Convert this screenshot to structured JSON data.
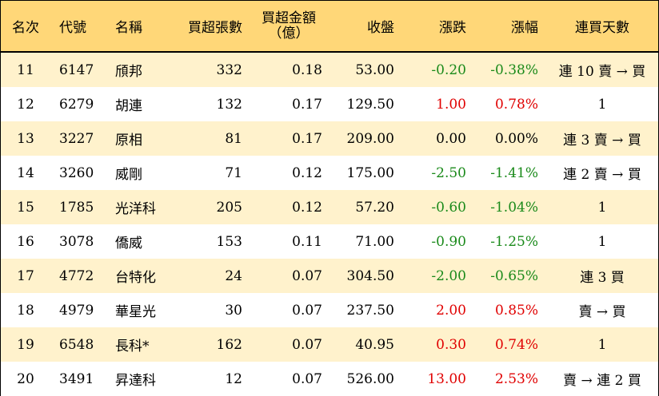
{
  "header": {
    "rank": "名次",
    "code": "代號",
    "name": "名稱",
    "net_buy_lots": "買超張數",
    "net_buy_amount_line1": "買超金額",
    "net_buy_amount_line2": "（億）",
    "close": "收盤",
    "change": "漲跌",
    "change_pct": "漲幅",
    "consecutive_days": "連買天數"
  },
  "rows": [
    {
      "rank": "11",
      "code": "6147",
      "name": "頎邦",
      "lots": "332",
      "amount": "0.18",
      "close": "53.00",
      "change": "-0.20",
      "pct": "-0.38%",
      "days": "連 10 賣 → 買",
      "dir": "neg"
    },
    {
      "rank": "12",
      "code": "6279",
      "name": "胡連",
      "lots": "132",
      "amount": "0.17",
      "close": "129.50",
      "change": "1.00",
      "pct": "0.78%",
      "days": "1",
      "dir": "pos"
    },
    {
      "rank": "13",
      "code": "3227",
      "name": "原相",
      "lots": "81",
      "amount": "0.17",
      "close": "209.00",
      "change": "0.00",
      "pct": "0.00%",
      "days": "連 3 賣 → 買",
      "dir": "zero"
    },
    {
      "rank": "14",
      "code": "3260",
      "name": "威剛",
      "lots": "71",
      "amount": "0.12",
      "close": "175.00",
      "change": "-2.50",
      "pct": "-1.41%",
      "days": "連 2 賣 → 買",
      "dir": "neg"
    },
    {
      "rank": "15",
      "code": "1785",
      "name": "光洋科",
      "lots": "205",
      "amount": "0.12",
      "close": "57.20",
      "change": "-0.60",
      "pct": "-1.04%",
      "days": "1",
      "dir": "neg"
    },
    {
      "rank": "16",
      "code": "3078",
      "name": "僑威",
      "lots": "153",
      "amount": "0.11",
      "close": "71.00",
      "change": "-0.90",
      "pct": "-1.25%",
      "days": "1",
      "dir": "neg"
    },
    {
      "rank": "17",
      "code": "4772",
      "name": "台特化",
      "lots": "24",
      "amount": "0.07",
      "close": "304.50",
      "change": "-2.00",
      "pct": "-0.65%",
      "days": "連 3 買",
      "dir": "neg"
    },
    {
      "rank": "18",
      "code": "4979",
      "name": "華星光",
      "lots": "30",
      "amount": "0.07",
      "close": "237.50",
      "change": "2.00",
      "pct": "0.85%",
      "days": "賣 → 買",
      "dir": "pos"
    },
    {
      "rank": "19",
      "code": "6548",
      "name": "長科*",
      "lots": "162",
      "amount": "0.07",
      "close": "40.95",
      "change": "0.30",
      "pct": "0.74%",
      "days": "1",
      "dir": "pos"
    },
    {
      "rank": "20",
      "code": "3491",
      "name": "昇達科",
      "lots": "12",
      "amount": "0.07",
      "close": "526.00",
      "change": "13.00",
      "pct": "2.53%",
      "days": "賣 → 連 2 買",
      "dir": "pos"
    }
  ],
  "colors": {
    "header_bg": "#ffd778",
    "odd_row_bg": "#fff2cc",
    "even_row_bg": "#ffffff",
    "up": "#e00000",
    "down": "#1a8a1a"
  }
}
